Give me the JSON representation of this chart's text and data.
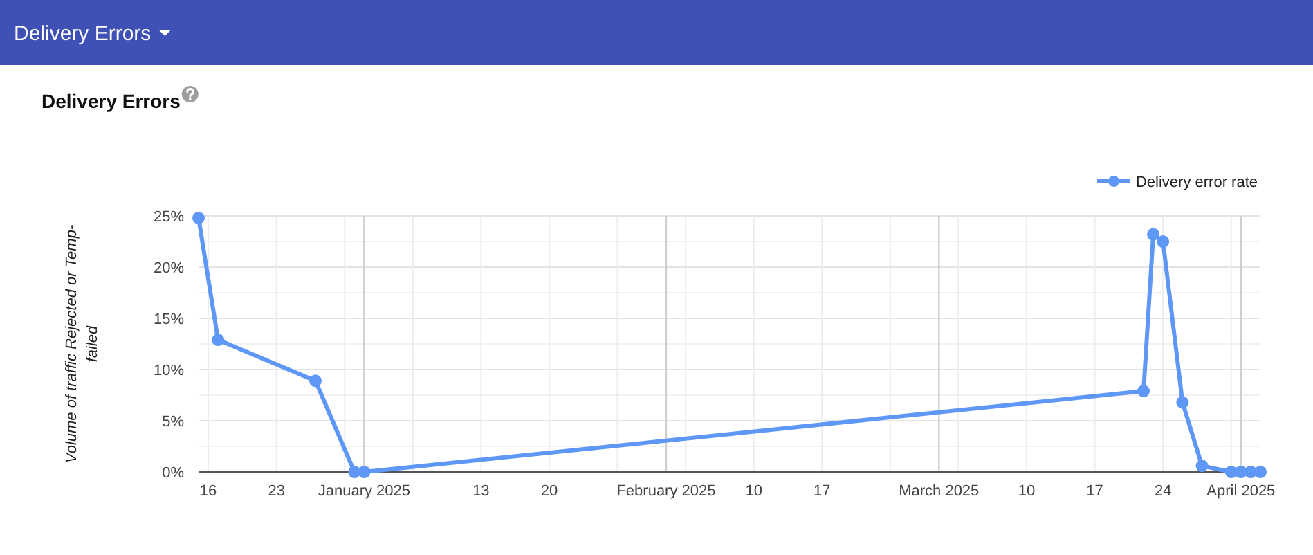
{
  "chart_data": {
    "type": "line",
    "title": "Delivery Errors",
    "ylabel": "Volume of traffic Rejected or Temp-failed",
    "annotations": [
      "Delivery Errors"
    ],
    "x": [
      "2024-12-15",
      "2024-12-17",
      "2024-12-27",
      "2024-12-31",
      "2025-01-01",
      "2025-03-22",
      "2025-03-23",
      "2025-03-24",
      "2025-03-26",
      "2025-03-28",
      "2025-03-31",
      "2025-04-01",
      "2025-04-02",
      "2025-04-03"
    ],
    "series": [
      {
        "name": "Delivery error rate",
        "color": "#5e97f6",
        "values": [
          24.8,
          12.9,
          8.9,
          0,
          0,
          7.9,
          23.2,
          22.5,
          6.8,
          0.6,
          0,
          0,
          0,
          0
        ]
      }
    ],
    "xlim": [
      "2024-12-15",
      "2025-04-03"
    ],
    "xticks": [
      {
        "value": "2024-12-16",
        "label": "16"
      },
      {
        "value": "2024-12-23",
        "label": "23"
      },
      {
        "value": "2024-12-30",
        "label": null
      },
      {
        "value": "2025-01-01",
        "label": "January 2025"
      },
      {
        "value": "2025-01-06",
        "label": null
      },
      {
        "value": "2025-01-13",
        "label": "13"
      },
      {
        "value": "2025-01-20",
        "label": "20"
      },
      {
        "value": "2025-01-27",
        "label": null
      },
      {
        "value": "2025-02-01",
        "label": "February 2025"
      },
      {
        "value": "2025-02-03",
        "label": null
      },
      {
        "value": "2025-02-10",
        "label": "10"
      },
      {
        "value": "2025-02-17",
        "label": "17"
      },
      {
        "value": "2025-02-24",
        "label": null
      },
      {
        "value": "2025-03-01",
        "label": "March 2025"
      },
      {
        "value": "2025-03-03",
        "label": null
      },
      {
        "value": "2025-03-10",
        "label": "10"
      },
      {
        "value": "2025-03-17",
        "label": "17"
      },
      {
        "value": "2025-03-24",
        "label": "24"
      },
      {
        "value": "2025-03-31",
        "label": null
      },
      {
        "value": "2025-04-01",
        "label": "April 2025"
      }
    ],
    "ylim": [
      0,
      25
    ],
    "yticks": [
      {
        "value": 0,
        "label": "0%"
      },
      {
        "value": 2.5,
        "label": null
      },
      {
        "value": 5,
        "label": "5%"
      },
      {
        "value": 7.5,
        "label": null
      },
      {
        "value": 10,
        "label": "10%"
      },
      {
        "value": 12.5,
        "label": null
      },
      {
        "value": 15,
        "label": "15%"
      },
      {
        "value": 17.5,
        "label": null
      },
      {
        "value": 20,
        "label": "20%"
      },
      {
        "value": 22.5,
        "label": null
      },
      {
        "value": 25,
        "label": "25%"
      }
    ],
    "grid": true,
    "legend": "top right",
    "marker": "circle",
    "line_style": "solid"
  }
}
